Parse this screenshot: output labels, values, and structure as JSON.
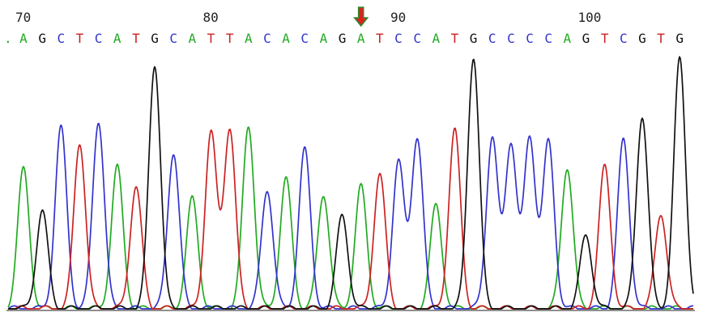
{
  "chart_data": {
    "type": "line",
    "title": "",
    "xlabel": "",
    "ylabel": "",
    "grid": false,
    "legend": "none",
    "position_ticks": [
      70,
      80,
      90,
      100
    ],
    "base_start_position": 70,
    "leading_mark": ".",
    "sequence": [
      "A",
      "G",
      "C",
      "T",
      "C",
      "A",
      "T",
      "G",
      "C",
      "A",
      "T",
      "T",
      "A",
      "C",
      "A",
      "C",
      "A",
      "G",
      "A",
      "T",
      "C",
      "C",
      "A",
      "T",
      "G",
      "C",
      "C",
      "C",
      "C",
      "A",
      "G",
      "T",
      "C",
      "G",
      "T",
      "G"
    ],
    "marked_base_position": 88,
    "marker": "red-down-arrow-icon",
    "base_colors": {
      "A": "#22aa22",
      "C": "#3333cc",
      "G": "#111111",
      "T": "#cc2222"
    },
    "peak_heights": [
      0.57,
      0.4,
      0.74,
      0.68,
      0.77,
      0.58,
      0.5,
      1.0,
      0.64,
      0.45,
      0.72,
      0.74,
      0.75,
      0.49,
      0.53,
      0.65,
      0.47,
      0.38,
      0.5,
      0.55,
      0.6,
      0.7,
      0.42,
      0.73,
      1.03,
      0.7,
      0.68,
      0.7,
      0.68,
      0.58,
      0.3,
      0.58,
      0.69,
      0.79,
      0.39,
      1.02
    ],
    "y_range": [
      0,
      1.05
    ]
  }
}
